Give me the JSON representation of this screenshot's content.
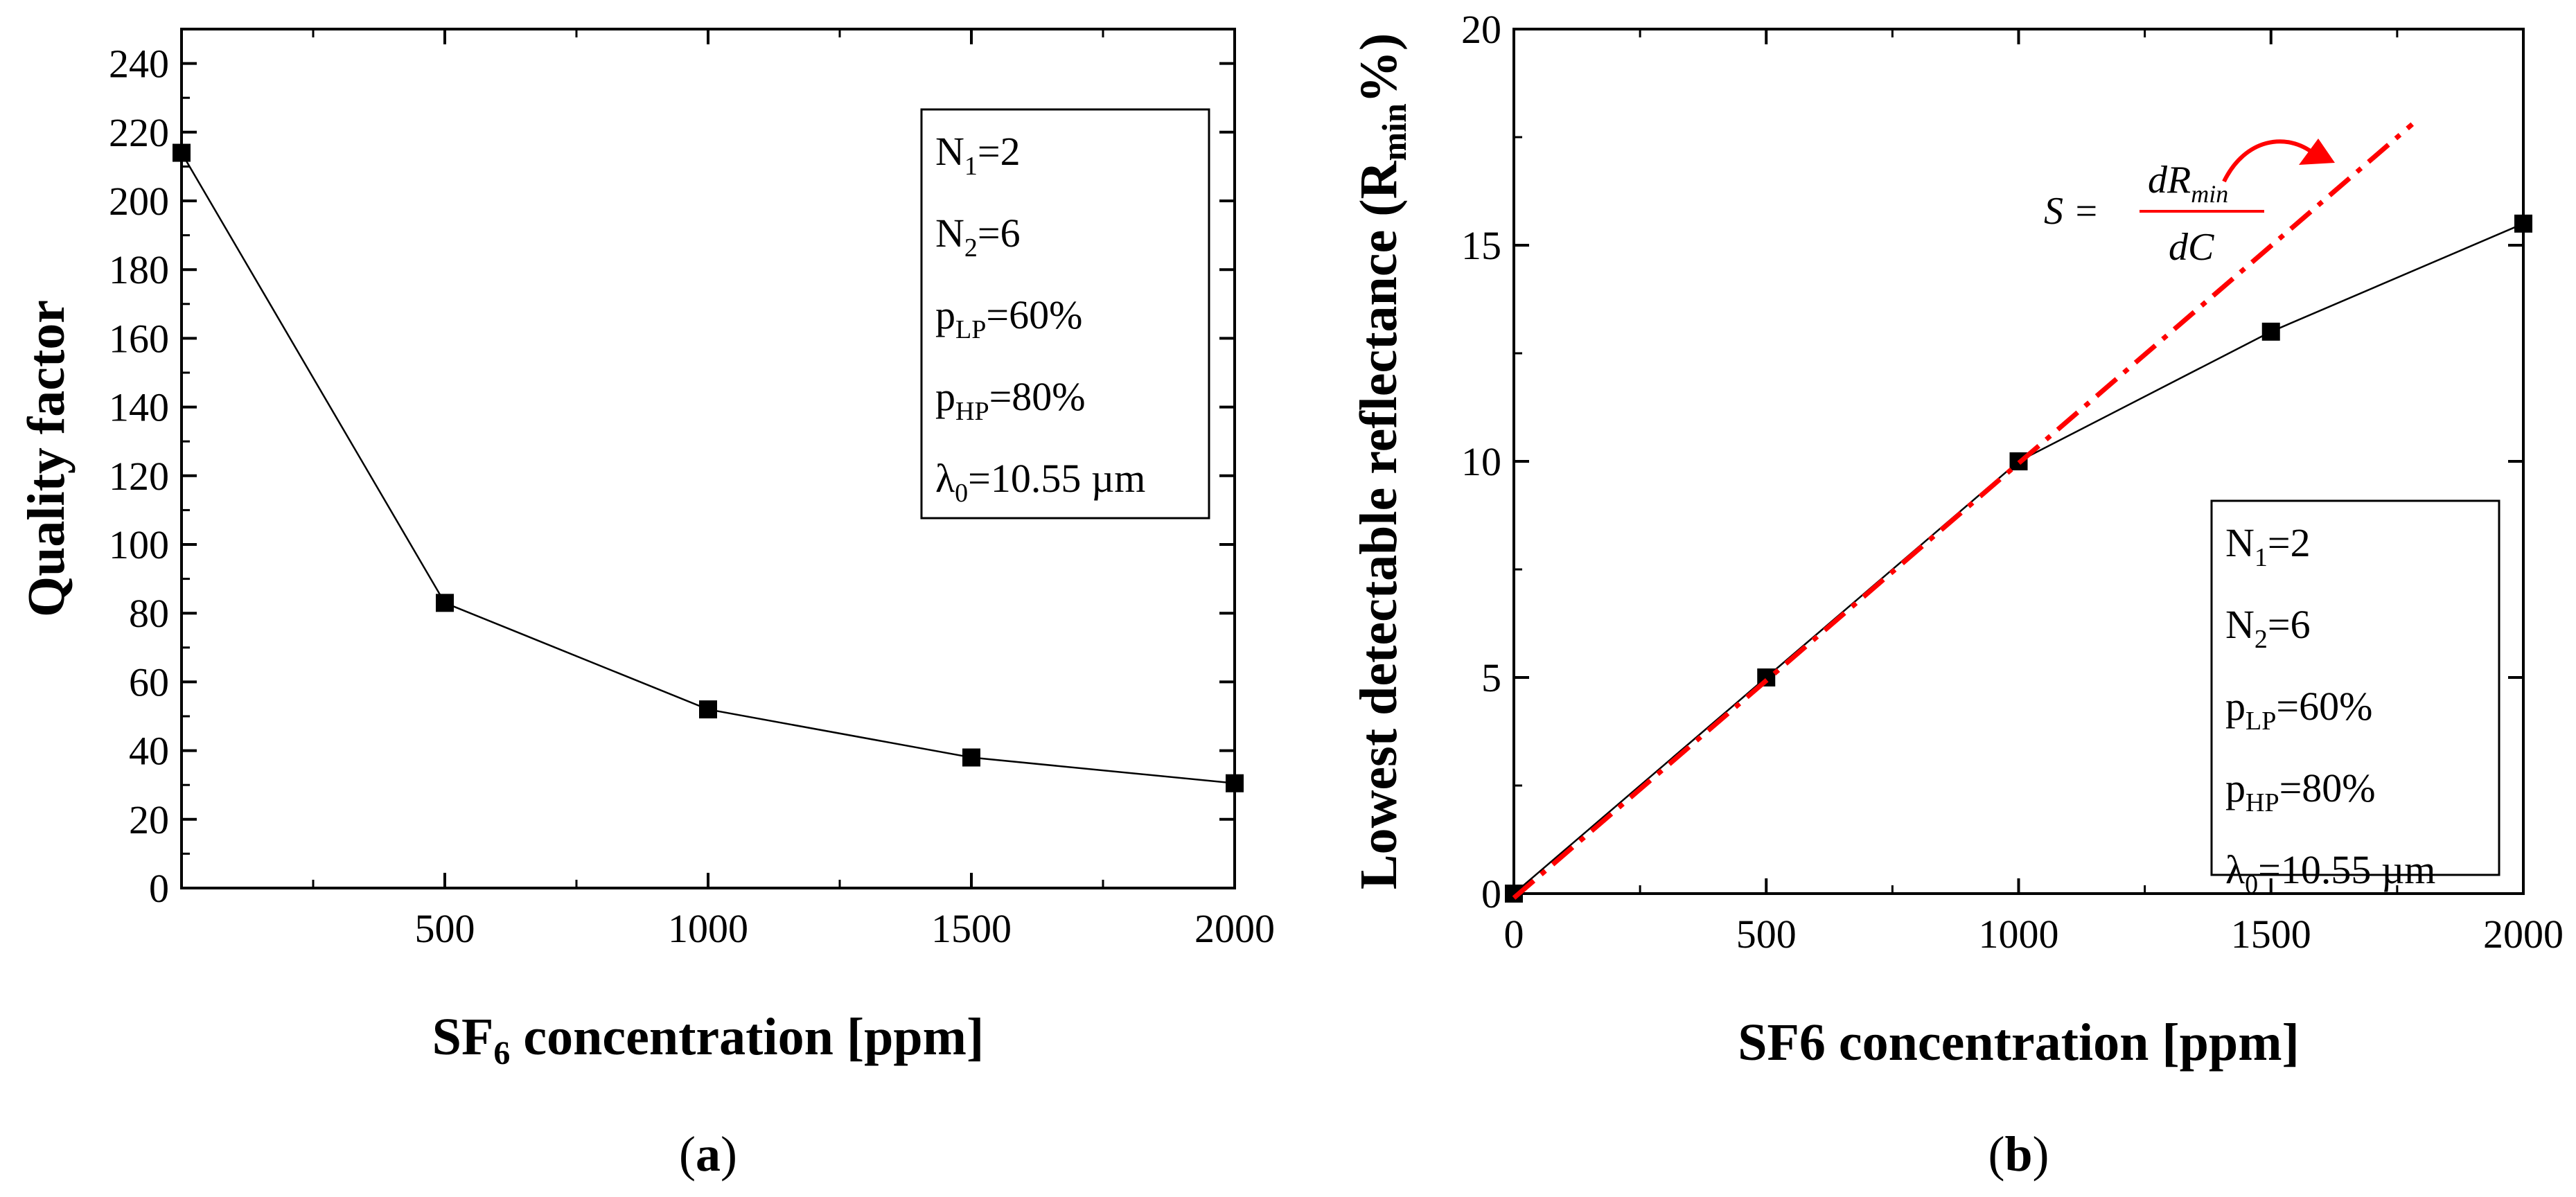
{
  "chart_data": [
    {
      "panel": "a",
      "type": "line",
      "caption": {
        "open": "(",
        "letter": "a",
        "close": ")"
      },
      "xlabel": {
        "main": "SF",
        "sub": "6",
        "rest": " concentration [ppm]"
      },
      "ylabel": "Quality factor",
      "xlim": [
        0,
        2000
      ],
      "ylim": [
        0,
        250
      ],
      "x_ticks": [
        500,
        1000,
        1500,
        2000
      ],
      "y_ticks": [
        0,
        20,
        40,
        60,
        80,
        100,
        120,
        140,
        160,
        180,
        200,
        220,
        240
      ],
      "series": [
        {
          "name": "Quality factor",
          "x": [
            0,
            500,
            1000,
            1500,
            2000
          ],
          "y": [
            214,
            83,
            52,
            38,
            30.5
          ]
        }
      ],
      "legend": {
        "placement": "top-right",
        "lines": [
          {
            "base": "N",
            "sub": "1",
            "rest": "=2"
          },
          {
            "base": "N",
            "sub": "2",
            "rest": "=6"
          },
          {
            "base": "p",
            "sub": "LP",
            "rest": "=60%"
          },
          {
            "base": "p",
            "sub": "HP",
            "rest": "=80%"
          },
          {
            "base": "λ",
            "sub": "0",
            "rest": "=10.55 µm"
          }
        ]
      }
    },
    {
      "panel": "b",
      "type": "line",
      "caption": {
        "open": "(",
        "letter": "b",
        "close": ")"
      },
      "xlabel": {
        "main": "SF6 concentration [ppm]"
      },
      "ylabel": {
        "main": "Lowest detectable reflectance (R",
        "sub": "min",
        "rest": "%)"
      },
      "xlim": [
        0,
        2000
      ],
      "ylim": [
        0,
        20
      ],
      "x_ticks": [
        0,
        500,
        1000,
        1500,
        2000
      ],
      "y_ticks": [
        0,
        5,
        10,
        15,
        20
      ],
      "series": [
        {
          "name": "Lowest detectable reflectance",
          "x": [
            0,
            500,
            1000,
            1500,
            2000
          ],
          "y": [
            0,
            5,
            10,
            13,
            15.5
          ]
        },
        {
          "name": "Sensitivity fit",
          "style": "dash-dot",
          "color": "#ff0000",
          "x": [
            0,
            1780
          ],
          "y": [
            -0.1,
            17.8
          ]
        }
      ],
      "annotation": {
        "color": "#ff0000",
        "lhs": "S =",
        "numerator": {
          "base": "dR",
          "sub": "min"
        },
        "denominator": "dC"
      },
      "legend": {
        "placement": "bottom-right",
        "lines": [
          {
            "base": "N",
            "sub": "1",
            "rest": "=2"
          },
          {
            "base": "N",
            "sub": "2",
            "rest": "=6"
          },
          {
            "base": "p",
            "sub": "LP",
            "rest": "=60%"
          },
          {
            "base": "p",
            "sub": "HP",
            "rest": "=80%"
          },
          {
            "base": "λ",
            "sub": "0",
            "rest": "=10.55 µm"
          }
        ]
      }
    }
  ],
  "colors": {
    "fit": "#ff0000",
    "data": "#000000"
  }
}
